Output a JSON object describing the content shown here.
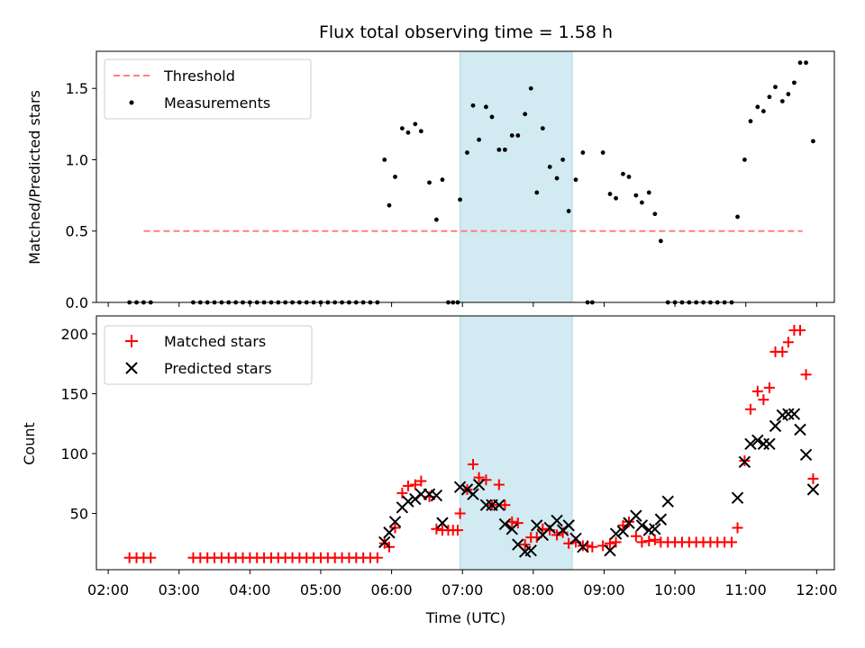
{
  "chart_data": [
    {
      "type": "scatter",
      "title": "Flux total observing time = 1.58 h",
      "ylabel": "Matched/Predicted stars",
      "xlabel": "",
      "ylim": [
        0,
        1.76
      ],
      "xlim": [
        "01:50",
        "12:15"
      ],
      "yticks": [
        0.0,
        0.5,
        1.0,
        1.5
      ],
      "ytick_labels": [
        "0.0",
        "0.5",
        "1.0",
        "1.5"
      ],
      "legend_position": "top-left",
      "shaded_span": [
        "06:58",
        "08:33"
      ],
      "shade_color": "#add8e6",
      "threshold": {
        "name": "Threshold",
        "y": 0.5,
        "x_start": "02:30",
        "x_end": "11:48",
        "color": "#ff7f7f",
        "style": "dashed"
      },
      "series": [
        {
          "name": "Measurements",
          "color": "#000000",
          "marker": "dot",
          "points": [
            [
              "02:18",
              0
            ],
            [
              "02:24",
              0
            ],
            [
              "02:30",
              0
            ],
            [
              "02:36",
              0
            ],
            [
              "03:12",
              0
            ],
            [
              "03:18",
              0
            ],
            [
              "03:24",
              0
            ],
            [
              "03:30",
              0
            ],
            [
              "03:36",
              0
            ],
            [
              "03:42",
              0
            ],
            [
              "03:48",
              0
            ],
            [
              "03:54",
              0
            ],
            [
              "04:00",
              0
            ],
            [
              "04:06",
              0
            ],
            [
              "04:12",
              0
            ],
            [
              "04:18",
              0
            ],
            [
              "04:24",
              0
            ],
            [
              "04:30",
              0
            ],
            [
              "04:36",
              0
            ],
            [
              "04:42",
              0
            ],
            [
              "04:48",
              0
            ],
            [
              "04:54",
              0
            ],
            [
              "05:00",
              0
            ],
            [
              "05:06",
              0
            ],
            [
              "05:12",
              0
            ],
            [
              "05:18",
              0
            ],
            [
              "05:24",
              0
            ],
            [
              "05:30",
              0
            ],
            [
              "05:36",
              0
            ],
            [
              "05:42",
              0
            ],
            [
              "05:48",
              0
            ],
            [
              "05:54",
              1.0
            ],
            [
              "05:58",
              0.68
            ],
            [
              "06:03",
              0.88
            ],
            [
              "06:09",
              1.22
            ],
            [
              "06:14",
              1.19
            ],
            [
              "06:20",
              1.25
            ],
            [
              "06:25",
              1.2
            ],
            [
              "06:32",
              0.84
            ],
            [
              "06:38",
              0.58
            ],
            [
              "06:43",
              0.86
            ],
            [
              "06:48",
              0
            ],
            [
              "06:52",
              0
            ],
            [
              "06:56",
              0
            ],
            [
              "06:58",
              0.72
            ],
            [
              "07:04",
              1.05
            ],
            [
              "07:09",
              1.38
            ],
            [
              "07:14",
              1.14
            ],
            [
              "07:20",
              1.37
            ],
            [
              "07:25",
              1.3
            ],
            [
              "07:31",
              1.07
            ],
            [
              "07:36",
              1.07
            ],
            [
              "07:42",
              1.17
            ],
            [
              "07:47",
              1.17
            ],
            [
              "07:53",
              1.32
            ],
            [
              "07:58",
              1.5
            ],
            [
              "08:03",
              0.77
            ],
            [
              "08:08",
              1.22
            ],
            [
              "08:14",
              0.95
            ],
            [
              "08:20",
              0.87
            ],
            [
              "08:25",
              1.0
            ],
            [
              "08:30",
              0.64
            ],
            [
              "08:36",
              0.86
            ],
            [
              "08:42",
              1.05
            ],
            [
              "08:46",
              0
            ],
            [
              "08:50",
              0
            ],
            [
              "08:59",
              1.05
            ],
            [
              "09:05",
              0.76
            ],
            [
              "09:10",
              0.73
            ],
            [
              "09:16",
              0.9
            ],
            [
              "09:21",
              0.88
            ],
            [
              "09:27",
              0.75
            ],
            [
              "09:32",
              0.7
            ],
            [
              "09:38",
              0.77
            ],
            [
              "09:43",
              0.62
            ],
            [
              "09:48",
              0.43
            ],
            [
              "09:54",
              0
            ],
            [
              "10:00",
              0
            ],
            [
              "10:06",
              0
            ],
            [
              "10:12",
              0
            ],
            [
              "10:18",
              0
            ],
            [
              "10:24",
              0
            ],
            [
              "10:30",
              0
            ],
            [
              "10:36",
              0
            ],
            [
              "10:42",
              0
            ],
            [
              "10:48",
              0
            ],
            [
              "10:53",
              0.6
            ],
            [
              "10:59",
              1.0
            ],
            [
              "11:04",
              1.27
            ],
            [
              "11:10",
              1.37
            ],
            [
              "11:15",
              1.34
            ],
            [
              "11:20",
              1.44
            ],
            [
              "11:25",
              1.51
            ],
            [
              "11:31",
              1.41
            ],
            [
              "11:36",
              1.46
            ],
            [
              "11:41",
              1.54
            ],
            [
              "11:46",
              1.68
            ],
            [
              "11:51",
              1.68
            ],
            [
              "11:57",
              1.13
            ]
          ]
        }
      ]
    },
    {
      "type": "scatter",
      "title": "",
      "ylabel": "Count",
      "xlabel": "Time (UTC)",
      "ylim": [
        3,
        215
      ],
      "xlim": [
        "01:50",
        "12:15"
      ],
      "yticks": [
        50,
        100,
        150,
        200
      ],
      "ytick_labels": [
        "50",
        "100",
        "150",
        "200"
      ],
      "xticks": [
        "02:00",
        "03:00",
        "04:00",
        "05:00",
        "06:00",
        "07:00",
        "08:00",
        "09:00",
        "10:00",
        "11:00",
        "12:00"
      ],
      "legend_position": "top-left",
      "shaded_span": [
        "06:58",
        "08:33"
      ],
      "shade_color": "#add8e6",
      "series": [
        {
          "name": "Matched stars",
          "color": "#ff0000",
          "marker": "plus",
          "points": [
            [
              "02:18",
              13
            ],
            [
              "02:24",
              13
            ],
            [
              "02:30",
              13
            ],
            [
              "02:36",
              13
            ],
            [
              "03:12",
              13
            ],
            [
              "03:18",
              13
            ],
            [
              "03:24",
              13
            ],
            [
              "03:30",
              13
            ],
            [
              "03:36",
              13
            ],
            [
              "03:42",
              13
            ],
            [
              "03:48",
              13
            ],
            [
              "03:54",
              13
            ],
            [
              "04:00",
              13
            ],
            [
              "04:06",
              13
            ],
            [
              "04:12",
              13
            ],
            [
              "04:18",
              13
            ],
            [
              "04:24",
              13
            ],
            [
              "04:30",
              13
            ],
            [
              "04:36",
              13
            ],
            [
              "04:42",
              13
            ],
            [
              "04:48",
              13
            ],
            [
              "04:54",
              13
            ],
            [
              "05:00",
              13
            ],
            [
              "05:06",
              13
            ],
            [
              "05:12",
              13
            ],
            [
              "05:18",
              13
            ],
            [
              "05:24",
              13
            ],
            [
              "05:30",
              13
            ],
            [
              "05:36",
              13
            ],
            [
              "05:42",
              13
            ],
            [
              "05:48",
              13
            ],
            [
              "05:54",
              25
            ],
            [
              "05:58",
              22
            ],
            [
              "06:03",
              38
            ],
            [
              "06:09",
              67
            ],
            [
              "06:14",
              73
            ],
            [
              "06:20",
              74
            ],
            [
              "06:25",
              77
            ],
            [
              "06:32",
              64
            ],
            [
              "06:38",
              37
            ],
            [
              "06:43",
              36
            ],
            [
              "06:48",
              36
            ],
            [
              "06:52",
              36
            ],
            [
              "06:56",
              36
            ],
            [
              "06:58",
              50
            ],
            [
              "07:04",
              70
            ],
            [
              "07:09",
              91
            ],
            [
              "07:14",
              80
            ],
            [
              "07:20",
              78
            ],
            [
              "07:25",
              57
            ],
            [
              "07:31",
              74
            ],
            [
              "07:36",
              57
            ],
            [
              "07:42",
              43
            ],
            [
              "07:47",
              42
            ],
            [
              "07:53",
              24
            ],
            [
              "07:58",
              30
            ],
            [
              "08:03",
              30
            ],
            [
              "08:08",
              37
            ],
            [
              "08:14",
              36
            ],
            [
              "08:20",
              32
            ],
            [
              "08:25",
              34
            ],
            [
              "08:30",
              25
            ],
            [
              "08:36",
              26
            ],
            [
              "08:42",
              23
            ],
            [
              "08:46",
              23
            ],
            [
              "08:50",
              22
            ],
            [
              "08:59",
              23
            ],
            [
              "09:05",
              25
            ],
            [
              "09:10",
              26
            ],
            [
              "09:16",
              40
            ],
            [
              "09:21",
              43
            ],
            [
              "09:27",
              31
            ],
            [
              "09:32",
              26
            ],
            [
              "09:38",
              27
            ],
            [
              "09:43",
              28
            ],
            [
              "09:48",
              26
            ],
            [
              "09:54",
              26
            ],
            [
              "10:00",
              26
            ],
            [
              "10:06",
              26
            ],
            [
              "10:12",
              26
            ],
            [
              "10:18",
              26
            ],
            [
              "10:24",
              26
            ],
            [
              "10:30",
              26
            ],
            [
              "10:36",
              26
            ],
            [
              "10:42",
              26
            ],
            [
              "10:48",
              26
            ],
            [
              "10:53",
              38
            ],
            [
              "10:59",
              94
            ],
            [
              "11:04",
              137
            ],
            [
              "11:10",
              152
            ],
            [
              "11:15",
              145
            ],
            [
              "11:20",
              155
            ],
            [
              "11:25",
              185
            ],
            [
              "11:31",
              185
            ],
            [
              "11:36",
              193
            ],
            [
              "11:41",
              203
            ],
            [
              "11:46",
              203
            ],
            [
              "11:51",
              166
            ],
            [
              "11:57",
              79
            ]
          ]
        },
        {
          "name": "Predicted stars",
          "color": "#000000",
          "marker": "x",
          "points": [
            [
              "05:54",
              26
            ],
            [
              "05:58",
              34
            ],
            [
              "06:03",
              43
            ],
            [
              "06:09",
              55
            ],
            [
              "06:14",
              60
            ],
            [
              "06:20",
              62
            ],
            [
              "06:25",
              66
            ],
            [
              "06:32",
              66
            ],
            [
              "06:38",
              65
            ],
            [
              "06:43",
              42
            ],
            [
              "06:58",
              72
            ],
            [
              "07:04",
              70
            ],
            [
              "07:09",
              66
            ],
            [
              "07:14",
              74
            ],
            [
              "07:20",
              57
            ],
            [
              "07:25",
              57
            ],
            [
              "07:31",
              57
            ],
            [
              "07:36",
              41
            ],
            [
              "07:42",
              37
            ],
            [
              "07:47",
              24
            ],
            [
              "07:53",
              18
            ],
            [
              "07:58",
              19
            ],
            [
              "08:03",
              40
            ],
            [
              "08:08",
              32
            ],
            [
              "08:14",
              38
            ],
            [
              "08:20",
              44
            ],
            [
              "08:25",
              36
            ],
            [
              "08:30",
              40
            ],
            [
              "08:36",
              29
            ],
            [
              "08:42",
              22
            ],
            [
              "09:05",
              19
            ],
            [
              "09:10",
              33
            ],
            [
              "09:16",
              35
            ],
            [
              "09:21",
              42
            ],
            [
              "09:27",
              48
            ],
            [
              "09:32",
              40
            ],
            [
              "09:38",
              36
            ],
            [
              "09:43",
              37
            ],
            [
              "09:48",
              45
            ],
            [
              "09:54",
              60
            ],
            [
              "10:53",
              63
            ],
            [
              "10:59",
              93
            ],
            [
              "11:04",
              108
            ],
            [
              "11:10",
              111
            ],
            [
              "11:15",
              108
            ],
            [
              "11:20",
              108
            ],
            [
              "11:25",
              123
            ],
            [
              "11:31",
              132
            ],
            [
              "11:36",
              133
            ],
            [
              "11:41",
              133
            ],
            [
              "11:46",
              120
            ],
            [
              "11:51",
              99
            ],
            [
              "11:57",
              70
            ]
          ]
        }
      ]
    }
  ]
}
